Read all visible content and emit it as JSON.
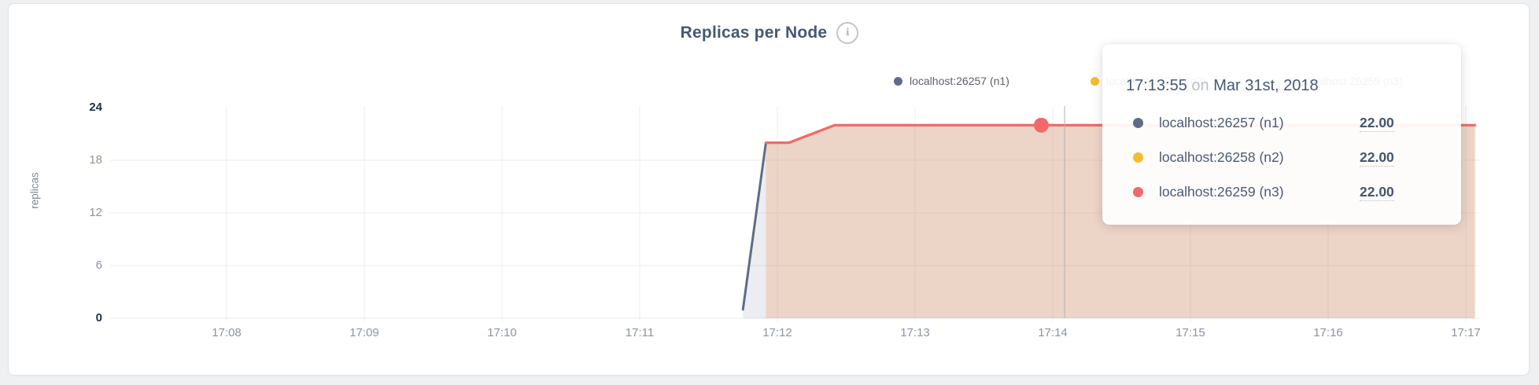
{
  "card": {
    "title": "Replicas per Node",
    "info_icon_glyph": "i"
  },
  "legend": {
    "items": [
      {
        "label": "localhost:26257 (n1)",
        "color": "#5F6C87"
      },
      {
        "label": "localhost:26258 (n2)",
        "color": "#F2BE2C"
      },
      {
        "label": "localhost:26259 (n3)",
        "color": "#F16969"
      }
    ]
  },
  "chart_data": {
    "type": "area",
    "title": "Replicas per Node",
    "ylabel": "replicas",
    "ylim": [
      0,
      24
    ],
    "y_ticks": [
      0,
      6,
      12,
      18,
      24
    ],
    "x_ticks": [
      "17:08",
      "17:09",
      "17:10",
      "17:11",
      "17:12",
      "17:13",
      "17:14",
      "17:15",
      "17:16",
      "17:17"
    ],
    "grid": true,
    "legend_position": "top-right",
    "series": [
      {
        "name": "localhost:26257 (n1)",
        "color": "#5F6C87",
        "fill_opacity": 0.12,
        "points": [
          [
            "17:11:45",
            1
          ],
          [
            "17:11:55",
            20
          ],
          [
            "17:12:05",
            20
          ],
          [
            "17:12:25",
            22
          ],
          [
            "17:17:04",
            22
          ]
        ]
      },
      {
        "name": "localhost:26258 (n2)",
        "color": "#F2BE2C",
        "fill_opacity": 0.12,
        "points": [
          [
            "17:11:55",
            20
          ],
          [
            "17:12:05",
            20
          ],
          [
            "17:12:25",
            22
          ],
          [
            "17:17:04",
            22
          ]
        ]
      },
      {
        "name": "localhost:26259 (n3)",
        "color": "#F16969",
        "fill_opacity": 0.15,
        "points": [
          [
            "17:11:55",
            20
          ],
          [
            "17:12:05",
            20
          ],
          [
            "17:12:25",
            22
          ],
          [
            "17:17:04",
            22
          ]
        ]
      }
    ],
    "hover": {
      "crosshair_time": "17:14:05",
      "point_time": "17:13:55",
      "point_series": "localhost:26259 (n3)",
      "point_value": 22,
      "point_color": "#F16969"
    }
  },
  "tooltip": {
    "time": "17:13:55",
    "conjunction": "on",
    "date": "Mar 31st, 2018",
    "rows": [
      {
        "label": "localhost:26257 (n1)",
        "value": "22.00",
        "color": "#5F6C87"
      },
      {
        "label": "localhost:26258 (n2)",
        "value": "22.00",
        "color": "#F2BE2C"
      },
      {
        "label": "localhost:26259 (n3)",
        "value": "22.00",
        "color": "#F16969"
      }
    ]
  }
}
